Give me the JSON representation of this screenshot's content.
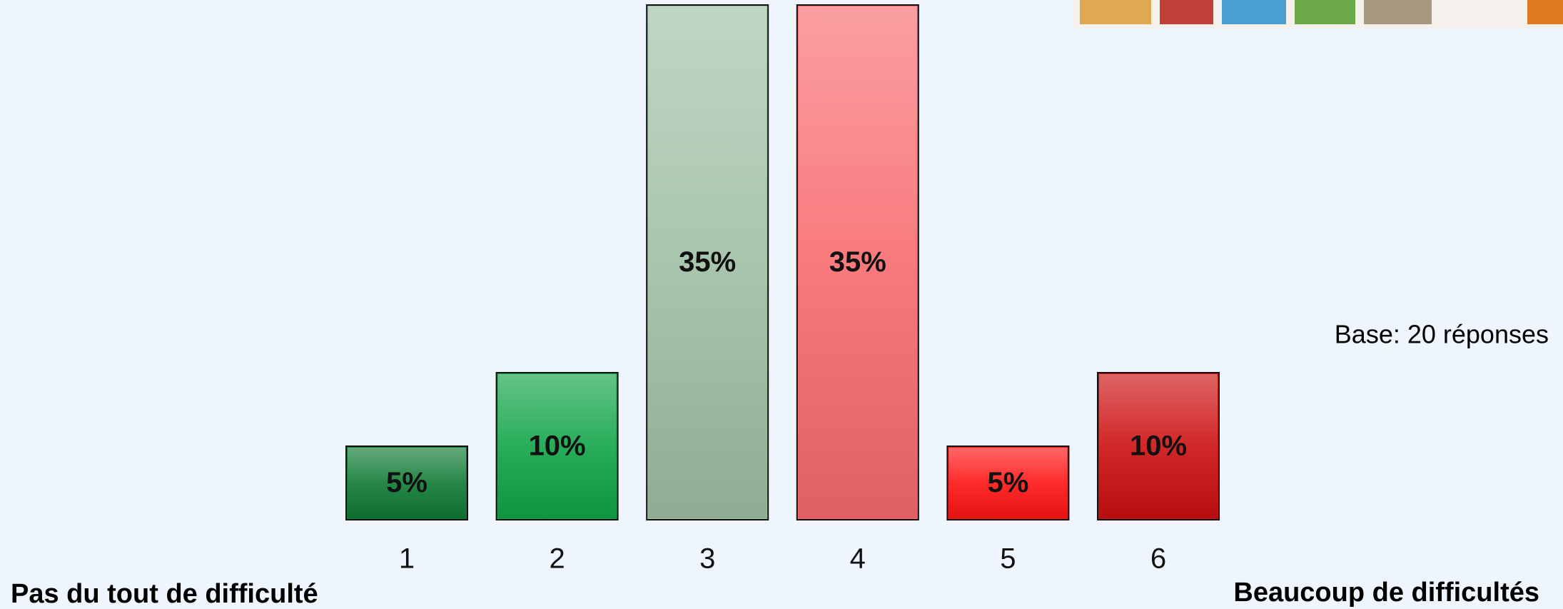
{
  "chart_data": {
    "type": "bar",
    "categories": [
      "1",
      "2",
      "3",
      "4",
      "5",
      "6"
    ],
    "values": [
      5,
      10,
      35,
      35,
      5,
      10
    ],
    "value_labels": [
      "5%",
      "10%",
      "35%",
      "35%",
      "5%",
      "10%"
    ],
    "colors": [
      "#0f7a34",
      "#10a447",
      "#9fbfa4",
      "#f86b6f",
      "#ff1414",
      "#cc0f10"
    ],
    "ylim": [
      0,
      35
    ],
    "annotations": [
      "Pas du tout de difficulté",
      "Beaucoup de difficultés",
      "Base: 20 réponses"
    ]
  }
}
